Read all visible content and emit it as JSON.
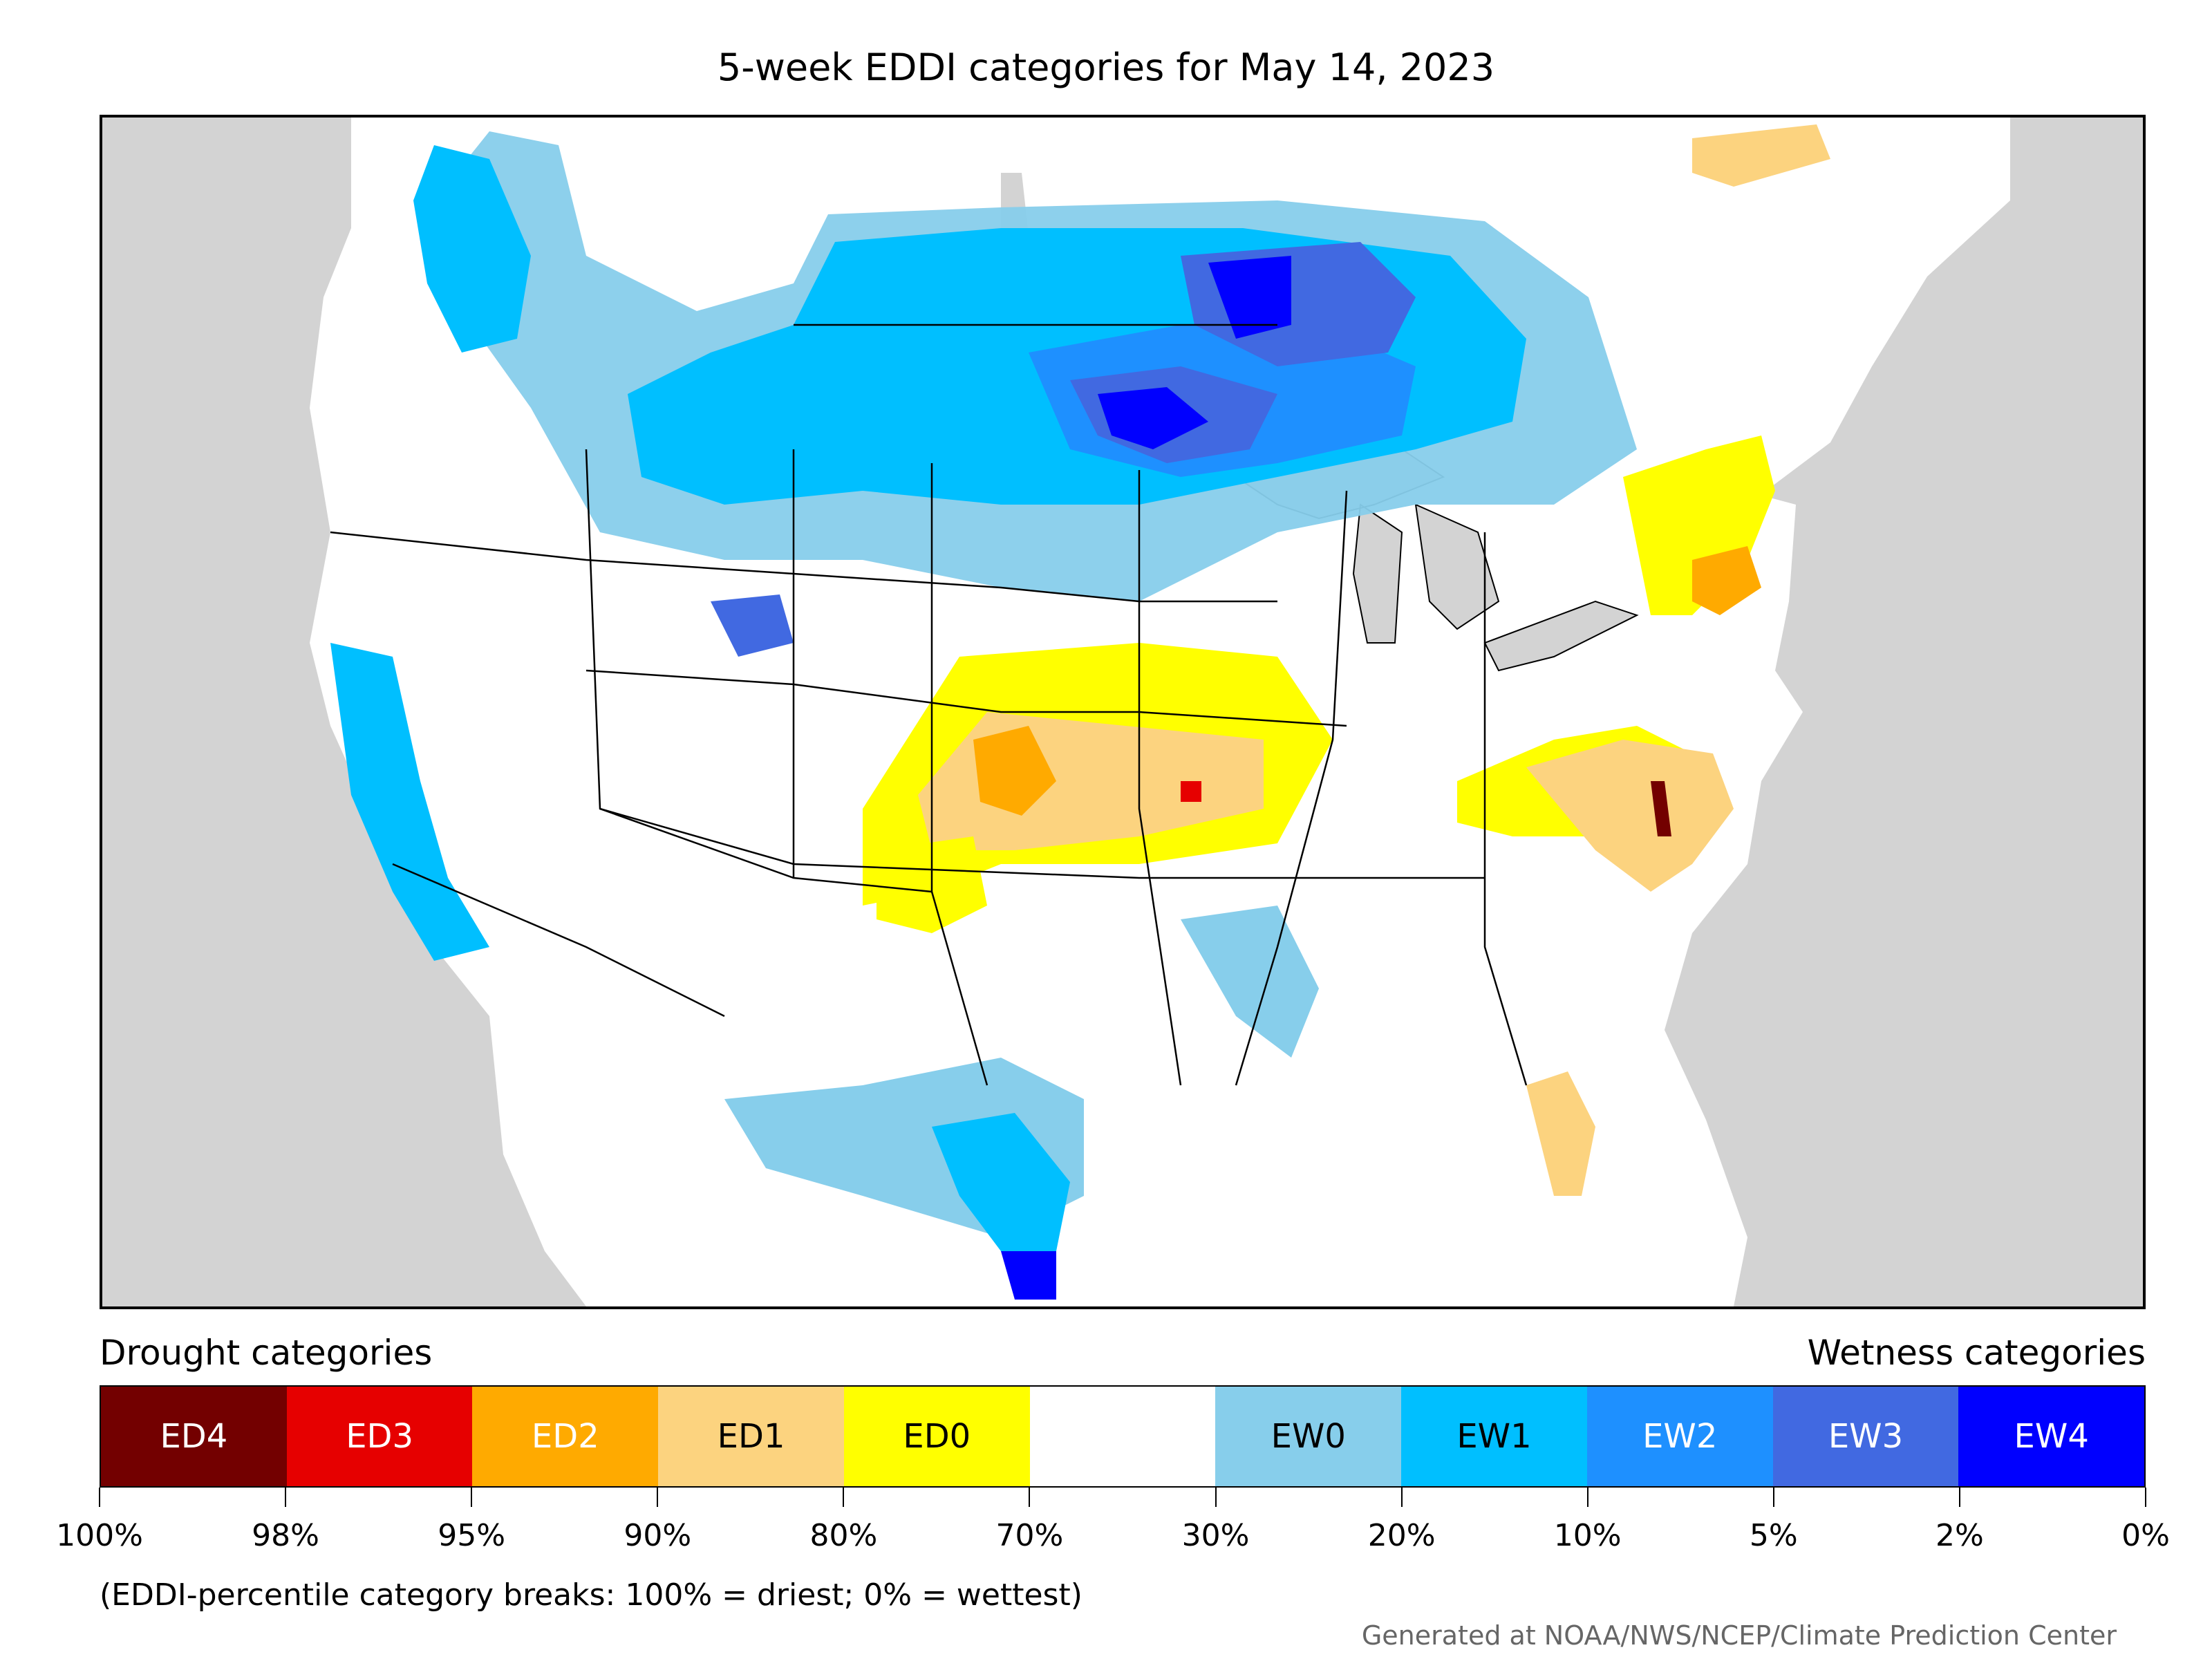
{
  "title": "5-week EDDI categories for May 14, 2023",
  "legend": {
    "drought_heading": "Drought categories",
    "wetness_heading": "Wetness categories",
    "categories": [
      {
        "label": "ED4",
        "color": "#730000",
        "text_color": "#ffffff"
      },
      {
        "label": "ED3",
        "color": "#e60000",
        "text_color": "#ffffff"
      },
      {
        "label": "ED2",
        "color": "#ffaa00",
        "text_color": "#ffffff"
      },
      {
        "label": "ED1",
        "color": "#fcd37f",
        "text_color": "#000000"
      },
      {
        "label": "ED0",
        "color": "#ffff00",
        "text_color": "#000000"
      },
      {
        "label": "",
        "color": "#ffffff",
        "text_color": "#000000"
      },
      {
        "label": "EW0",
        "color": "#87ceeb",
        "text_color": "#000000"
      },
      {
        "label": "EW1",
        "color": "#00bfff",
        "text_color": "#000000"
      },
      {
        "label": "EW2",
        "color": "#1e90ff",
        "text_color": "#ffffff"
      },
      {
        "label": "EW3",
        "color": "#4169e1",
        "text_color": "#ffffff"
      },
      {
        "label": "EW4",
        "color": "#0000ff",
        "text_color": "#ffffff"
      }
    ],
    "breaks": [
      "100%",
      "98%",
      "95%",
      "90%",
      "80%",
      "70%",
      "30%",
      "20%",
      "10%",
      "5%",
      "2%",
      "0%"
    ]
  },
  "note": "(EDDI-percentile category breaks: 100% = driest; 0% = wettest)",
  "credit": "Generated at NOAA/NWS/NCEP/Climate Prediction Center",
  "map": {
    "ocean_color": "#d3d3d3",
    "land_color": "#ffffff",
    "regions": [
      {
        "name": "pacific-northwest-wet",
        "category": "EW0"
      },
      {
        "name": "northern-plains-wet",
        "category": "EW1"
      },
      {
        "name": "north-dakota-wet",
        "category": "EW3"
      },
      {
        "name": "central-plains-dry",
        "category": "ED1"
      },
      {
        "name": "mid-atlantic-dry",
        "category": "ED1"
      },
      {
        "name": "florida-dry",
        "category": "ED1"
      },
      {
        "name": "south-texas-wet",
        "category": "EW1"
      },
      {
        "name": "california-coast-wet",
        "category": "EW1"
      }
    ]
  }
}
